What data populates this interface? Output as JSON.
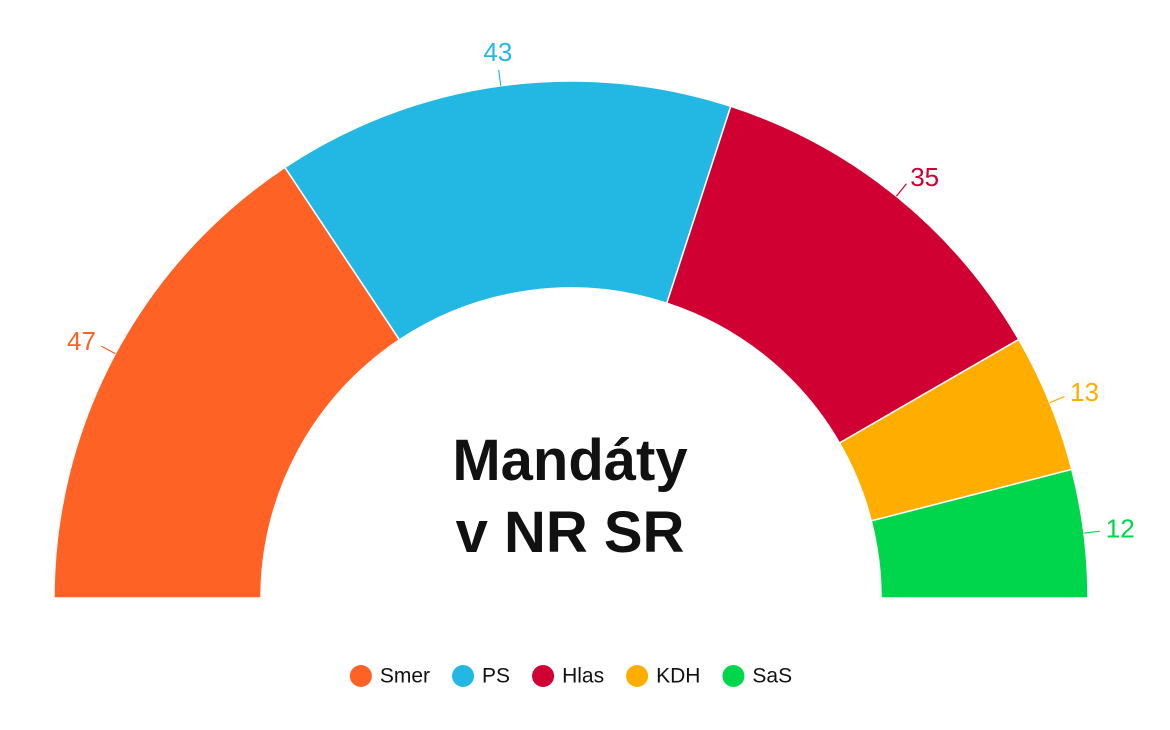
{
  "chart_data": {
    "type": "semidonut",
    "title": "Mandáty v NR SR",
    "categories": [
      "Smer",
      "PS",
      "Hlas",
      "KDH",
      "SaS"
    ],
    "values": [
      47,
      43,
      35,
      13,
      12
    ],
    "colors": [
      "#ff6224",
      "#23b8e3",
      "#d10032",
      "#ffae00",
      "#00d64b"
    ]
  }
}
